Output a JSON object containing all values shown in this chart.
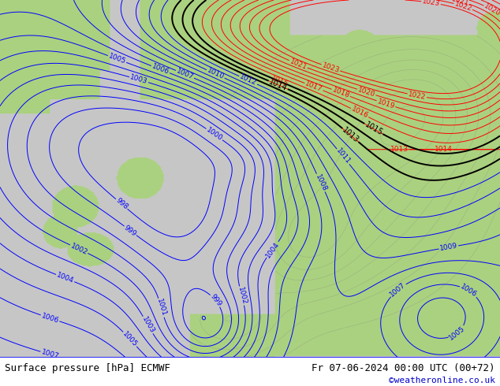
{
  "title_left": "Surface pressure [hPa] ECMWF",
  "title_right": "Fr 07-06-2024 00:00 UTC (00+72)",
  "copyright": "©weatheronline.co.uk",
  "sea_color": "#c8c8c8",
  "land_color": "#aad080",
  "footer_bg": "#ffffff",
  "footer_text_color": "#000000",
  "copyright_color": "#0000cc",
  "blue_color": "#0000ff",
  "red_color": "#ff0000",
  "black_color": "#000000",
  "gray_color": "#808080",
  "label_fontsize": 6.5,
  "footer_fontsize": 9
}
